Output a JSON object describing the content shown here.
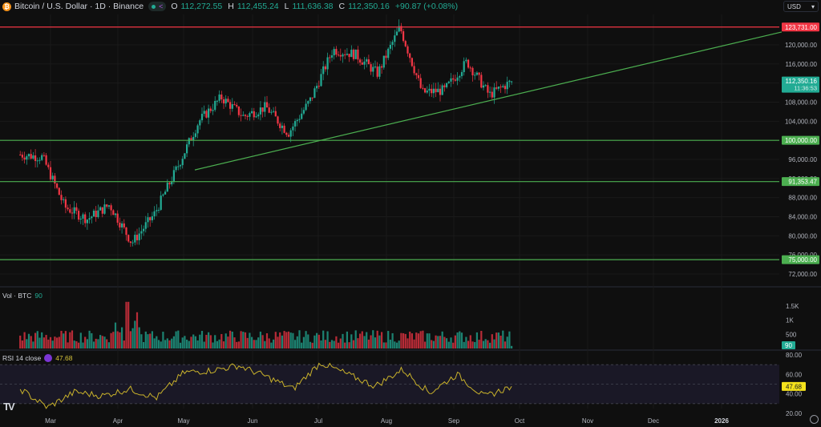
{
  "header": {
    "symbol_title": "Bitcoin / U.S. Dollar · 1D · Binance",
    "ohlc": {
      "open_label": "O",
      "open": "112,272.55",
      "high_label": "H",
      "high": "112,455.24",
      "low_label": "L",
      "low": "111,636.38",
      "close_label": "C",
      "close": "112,350.16",
      "change": "+90.87 (+0.08%)"
    },
    "icons": [
      "bitcoin-icon",
      "market-status-dot",
      "share-icon"
    ]
  },
  "currency_selector": {
    "value": "USD"
  },
  "volume_pane": {
    "label": "Vol · BTC",
    "value": "90"
  },
  "rsi_pane": {
    "label": "RSI 14 close",
    "value": "47.68"
  },
  "colors": {
    "background": "#0f0f0f",
    "up": "#22ab94",
    "down": "#f23645",
    "resistance_line": "#f23645",
    "support_line": "#4caf50",
    "rsi_line": "#c9b22b",
    "rsi_band": "#1a1826",
    "rsi_badge": "#f5e31c"
  },
  "chart_data": [
    {
      "type": "candlestick",
      "title": "Bitcoin / U.S. Dollar · 1D · Binance",
      "x_tick_labels": [
        "Mar",
        "Apr",
        "May",
        "Jun",
        "Jul",
        "Aug",
        "Sep",
        "Oct",
        "Nov",
        "Dec",
        "2026"
      ],
      "y_tick_labels": [
        "120,000.00",
        "116,000.00",
        "108,000.00",
        "104,000.00",
        "96,000.00",
        "92,000.00",
        "88,000.00",
        "84,000.00",
        "80,000.00",
        "76,000.00",
        "72,000.00"
      ],
      "ylim": [
        70500,
        125800
      ],
      "current_price": {
        "value": "112,350.16",
        "countdown": "11:36:53"
      },
      "horizontal_levels": [
        {
          "label": "123,731.00",
          "value": 123731,
          "color": "#f23645"
        },
        {
          "label": "100,000.00",
          "value": 100000,
          "color": "#4caf50"
        },
        {
          "label": "91,353.47",
          "value": 91353.47,
          "color": "#4caf50"
        },
        {
          "label": "75,000.00",
          "value": 75000,
          "color": "#4caf50"
        }
      ],
      "trendline": {
        "from": [
          "May 1",
          93800
        ],
        "to": [
          "beyond 2026",
          122700
        ],
        "color": "#4caf50"
      },
      "approx_close_path": [
        [
          "mid Feb",
          97000
        ],
        [
          "late Feb",
          96500
        ],
        [
          "early Mar",
          86000
        ],
        [
          "mid Mar",
          83500
        ],
        [
          "late Mar",
          86500
        ],
        [
          "early Apr",
          78500
        ],
        [
          "mid Apr",
          84500
        ],
        [
          "late Apr",
          94000
        ],
        [
          "mid May",
          104000
        ],
        [
          "late May",
          109000
        ],
        [
          "early Jun",
          105000
        ],
        [
          "mid Jun",
          107000
        ],
        [
          "late Jun",
          101500
        ],
        [
          "early Jul",
          108500
        ],
        [
          "mid Jul",
          119000
        ],
        [
          "late Jul",
          118000
        ],
        [
          "early Aug",
          114000
        ],
        [
          "mid Aug",
          123700
        ],
        [
          "late Aug",
          110000
        ],
        [
          "early Sep",
          110500
        ],
        [
          "mid Sep",
          116500
        ],
        [
          "late Sep",
          109500
        ],
        [
          "Sep 30",
          112350
        ]
      ],
      "grid": true
    },
    {
      "type": "bar",
      "title": "Vol · BTC",
      "y_tick_labels": [
        "1.5K",
        "1K",
        "500"
      ],
      "last_value": 90,
      "peak_value_approx": 1700,
      "peak_date_approx": "early Apr"
    },
    {
      "type": "line",
      "title": "RSI 14 close",
      "y_tick_labels": [
        "80.00",
        "60.00",
        "40.00",
        "20.00"
      ],
      "band": [
        30,
        70
      ],
      "midline": 50,
      "last_value": 47.68,
      "approx_path": [
        [
          "mid Feb",
          45
        ],
        [
          "late Feb",
          26
        ],
        [
          "early Mar",
          42
        ],
        [
          "mid Mar",
          38
        ],
        [
          "late Mar",
          45
        ],
        [
          "early Apr",
          36
        ],
        [
          "late Apr",
          62
        ],
        [
          "mid May",
          64
        ],
        [
          "late May",
          69
        ],
        [
          "mid Jun",
          58
        ],
        [
          "late Jun",
          45
        ],
        [
          "mid Jul",
          72
        ],
        [
          "late Jul",
          60
        ],
        [
          "early Aug",
          48
        ],
        [
          "mid Aug",
          65
        ],
        [
          "late Aug",
          41
        ],
        [
          "mid Sep",
          60
        ],
        [
          "late Sep",
          37
        ],
        [
          "Sep 30",
          47.68
        ]
      ]
    }
  ]
}
